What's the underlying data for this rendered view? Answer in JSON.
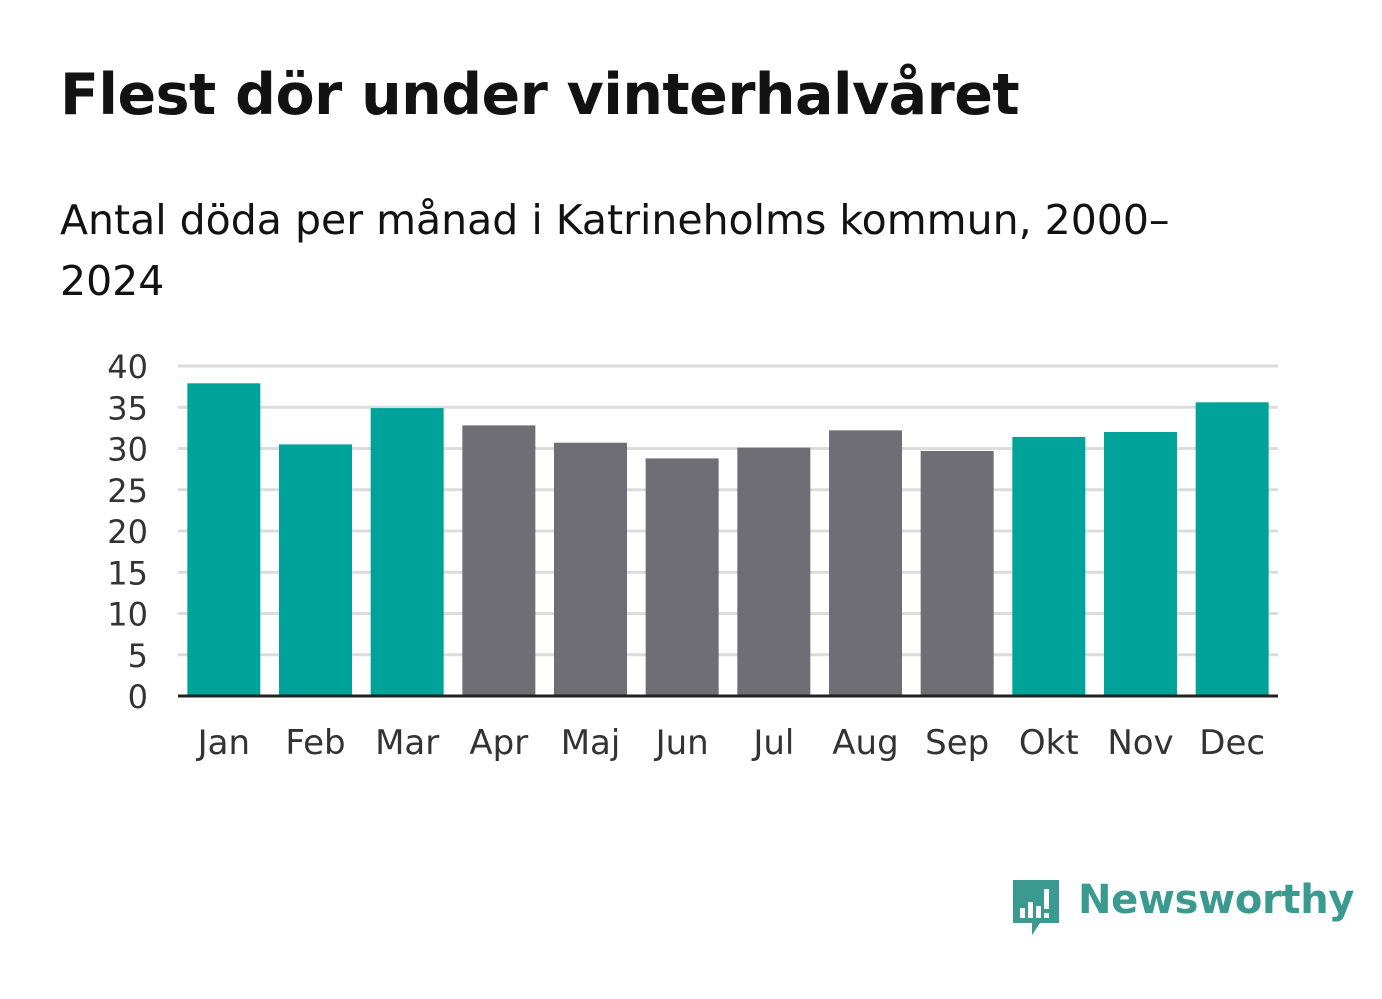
{
  "title": "Flest dör under vinterhalvåret",
  "subtitle": "Antal döda per månad i Katrineholms kommun, 2000–2024",
  "colors": {
    "winter": "#00a39a",
    "summer": "#6f6e74",
    "grid": "#dcdcdc",
    "axis": "#222222"
  },
  "chart_data": {
    "type": "bar",
    "title": "Flest dör under vinterhalvåret",
    "subtitle": "Antal döda per månad i Katrineholms kommun, 2000–2024",
    "xlabel": "",
    "ylabel": "",
    "ylim": [
      0,
      40
    ],
    "yticks": [
      0,
      5,
      10,
      15,
      20,
      25,
      30,
      35,
      40
    ],
    "grid": true,
    "categories": [
      "Jan",
      "Feb",
      "Mar",
      "Apr",
      "Maj",
      "Jun",
      "Jul",
      "Aug",
      "Sep",
      "Okt",
      "Nov",
      "Dec"
    ],
    "values": [
      37.9,
      30.5,
      34.9,
      32.8,
      30.7,
      28.8,
      30.1,
      32.2,
      29.7,
      31.4,
      32.0,
      35.6
    ],
    "season": [
      "winter",
      "winter",
      "winter",
      "summer",
      "summer",
      "summer",
      "summer",
      "summer",
      "summer",
      "winter",
      "winter",
      "winter"
    ]
  },
  "brand": {
    "name": "Newsworthy",
    "icon": "newsworthy-logo-icon"
  }
}
